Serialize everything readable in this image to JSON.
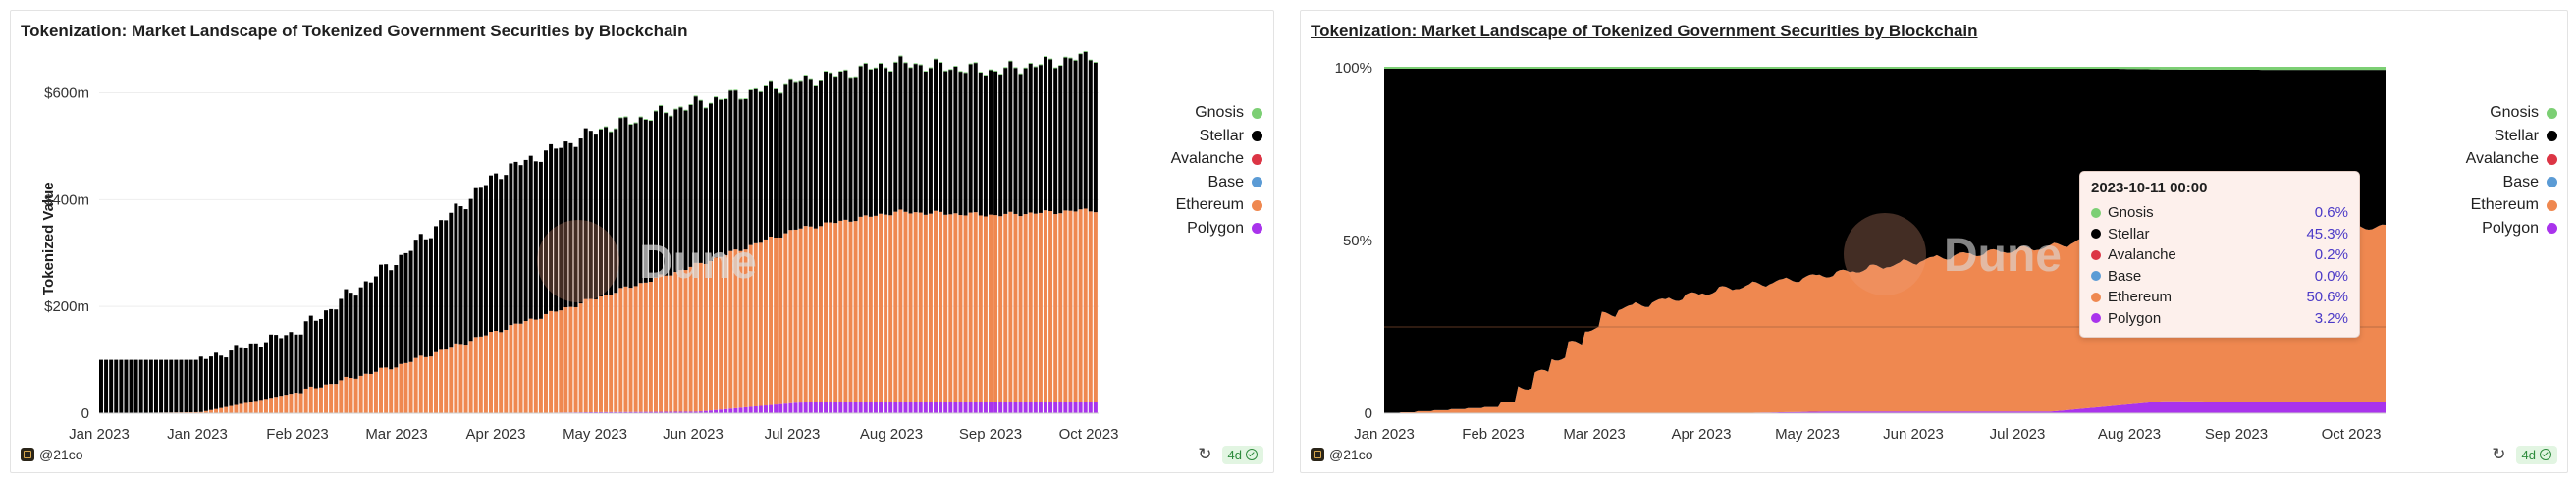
{
  "colors": {
    "Gnosis": "#7ccf74",
    "Stellar": "#000000",
    "Avalanche": "#dc3545",
    "Base": "#5b9bd5",
    "Ethereum": "#ef8850",
    "Polygon": "#a933ec"
  },
  "legend_order": [
    "Gnosis",
    "Stellar",
    "Avalanche",
    "Base",
    "Ethereum",
    "Polygon"
  ],
  "footer": {
    "author": "@21co",
    "age_badge": "4d"
  },
  "watermark": "Dune",
  "chart_data": [
    {
      "type": "bar",
      "stacked": true,
      "title": "Tokenization: Market Landscape of Tokenized Government Securities by Blockchain",
      "ylabel": "Tokenized Value",
      "xlabel": "",
      "x_ticks": [
        "Jan 2023",
        "Jan 2023",
        "Feb 2023",
        "Mar 2023",
        "Apr 2023",
        "May 2023",
        "Jun 2023",
        "Jul 2023",
        "Aug 2023",
        "Sep 2023",
        "Oct 2023"
      ],
      "y_ticks": [
        "0",
        "$200m",
        "$400m",
        "$600m"
      ],
      "ylim": [
        0,
        680
      ],
      "grid": true,
      "legend": "right",
      "series_stack_order": [
        "Polygon",
        "Ethereum",
        "Base",
        "Avalanche",
        "Stellar",
        "Gnosis"
      ],
      "x": [
        "Jan 2023",
        "Jan 2023",
        "Feb 2023",
        "Mar 2023",
        "Apr 2023",
        "May 2023",
        "Jun 2023",
        "Jul 2023",
        "Aug 2023",
        "Sep 2023",
        "Oct 2023"
      ],
      "totals": [
        100,
        100,
        155,
        290,
        450,
        530,
        580,
        620,
        655,
        640,
        670
      ],
      "series": [
        {
          "name": "Polygon",
          "values": [
            0,
            0,
            0,
            0,
            0,
            2,
            3,
            20,
            22,
            21,
            21
          ]
        },
        {
          "name": "Ethereum",
          "values": [
            0,
            2,
            40,
            90,
            155,
            215,
            275,
            325,
            355,
            350,
            360
          ]
        },
        {
          "name": "Stellar",
          "values": [
            100,
            98,
            115,
            200,
            295,
            313,
            302,
            275,
            278,
            269,
            289
          ]
        }
      ]
    },
    {
      "type": "area",
      "stacked": true,
      "percent": true,
      "title": "Tokenization: Market Landscape of Tokenized Government Securities by Blockchain",
      "x_ticks": [
        "Jan 2023",
        "Feb 2023",
        "Mar 2023",
        "Apr 2023",
        "May 2023",
        "Jun 2023",
        "Jul 2023",
        "Aug 2023",
        "Sep 2023",
        "Oct 2023"
      ],
      "y_ticks": [
        "0",
        "50%",
        "100%"
      ],
      "ylim": [
        0,
        100
      ],
      "legend": "right",
      "x": [
        "Jan 2023",
        "Feb 2023",
        "Mar 2023",
        "Apr 2023",
        "May 2023",
        "Jun 2023",
        "Jul 2023",
        "Aug 2023",
        "Sep 2023",
        "Oct 2023"
      ],
      "series": [
        {
          "name": "Polygon",
          "values": [
            0,
            0,
            0,
            0,
            0.5,
            0.5,
            0.5,
            3.5,
            3.3,
            3.2
          ]
        },
        {
          "name": "Ethereum",
          "values": [
            0,
            2,
            30,
            36,
            40,
            45,
            48,
            52,
            51,
            50.6
          ]
        },
        {
          "name": "Stellar",
          "values": [
            100,
            98,
            70,
            64,
            59.5,
            54.5,
            51.5,
            44,
            45.1,
            45.3
          ]
        },
        {
          "name": "Gnosis",
          "values": [
            0,
            0,
            0,
            0,
            0,
            0,
            0,
            0.5,
            0.6,
            0.6
          ]
        }
      ],
      "tooltip": {
        "title": "2023-10-11 00:00",
        "rows": [
          {
            "name": "Gnosis",
            "value": "0.6%"
          },
          {
            "name": "Stellar",
            "value": "45.3%"
          },
          {
            "name": "Avalanche",
            "value": "0.2%"
          },
          {
            "name": "Base",
            "value": "0.0%"
          },
          {
            "name": "Ethereum",
            "value": "50.6%"
          },
          {
            "name": "Polygon",
            "value": "3.2%"
          }
        ]
      }
    }
  ]
}
